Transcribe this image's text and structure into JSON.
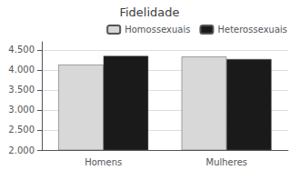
{
  "chart_data": {
    "type": "bar",
    "title": "Fidelidade",
    "categories": [
      "Homens",
      "Mulheres"
    ],
    "series": [
      {
        "name": "Homossexuais",
        "color": "#d8d8d8",
        "values": [
          4.13,
          4.33
        ]
      },
      {
        "name": "Heterossexuais",
        "color": "#1a1a1a",
        "values": [
          4.35,
          4.27
        ]
      }
    ],
    "ylim": [
      2.0,
      4.7
    ],
    "yticks": [
      {
        "value": 2.0,
        "label": "2.000"
      },
      {
        "value": 2.5,
        "label": "2.500"
      },
      {
        "value": 3.0,
        "label": "3.000"
      },
      {
        "value": 3.5,
        "label": "3.500"
      },
      {
        "value": 4.0,
        "label": "4.000"
      },
      {
        "value": 4.5,
        "label": "4.500"
      }
    ],
    "grid": true,
    "legend": "upper right"
  }
}
